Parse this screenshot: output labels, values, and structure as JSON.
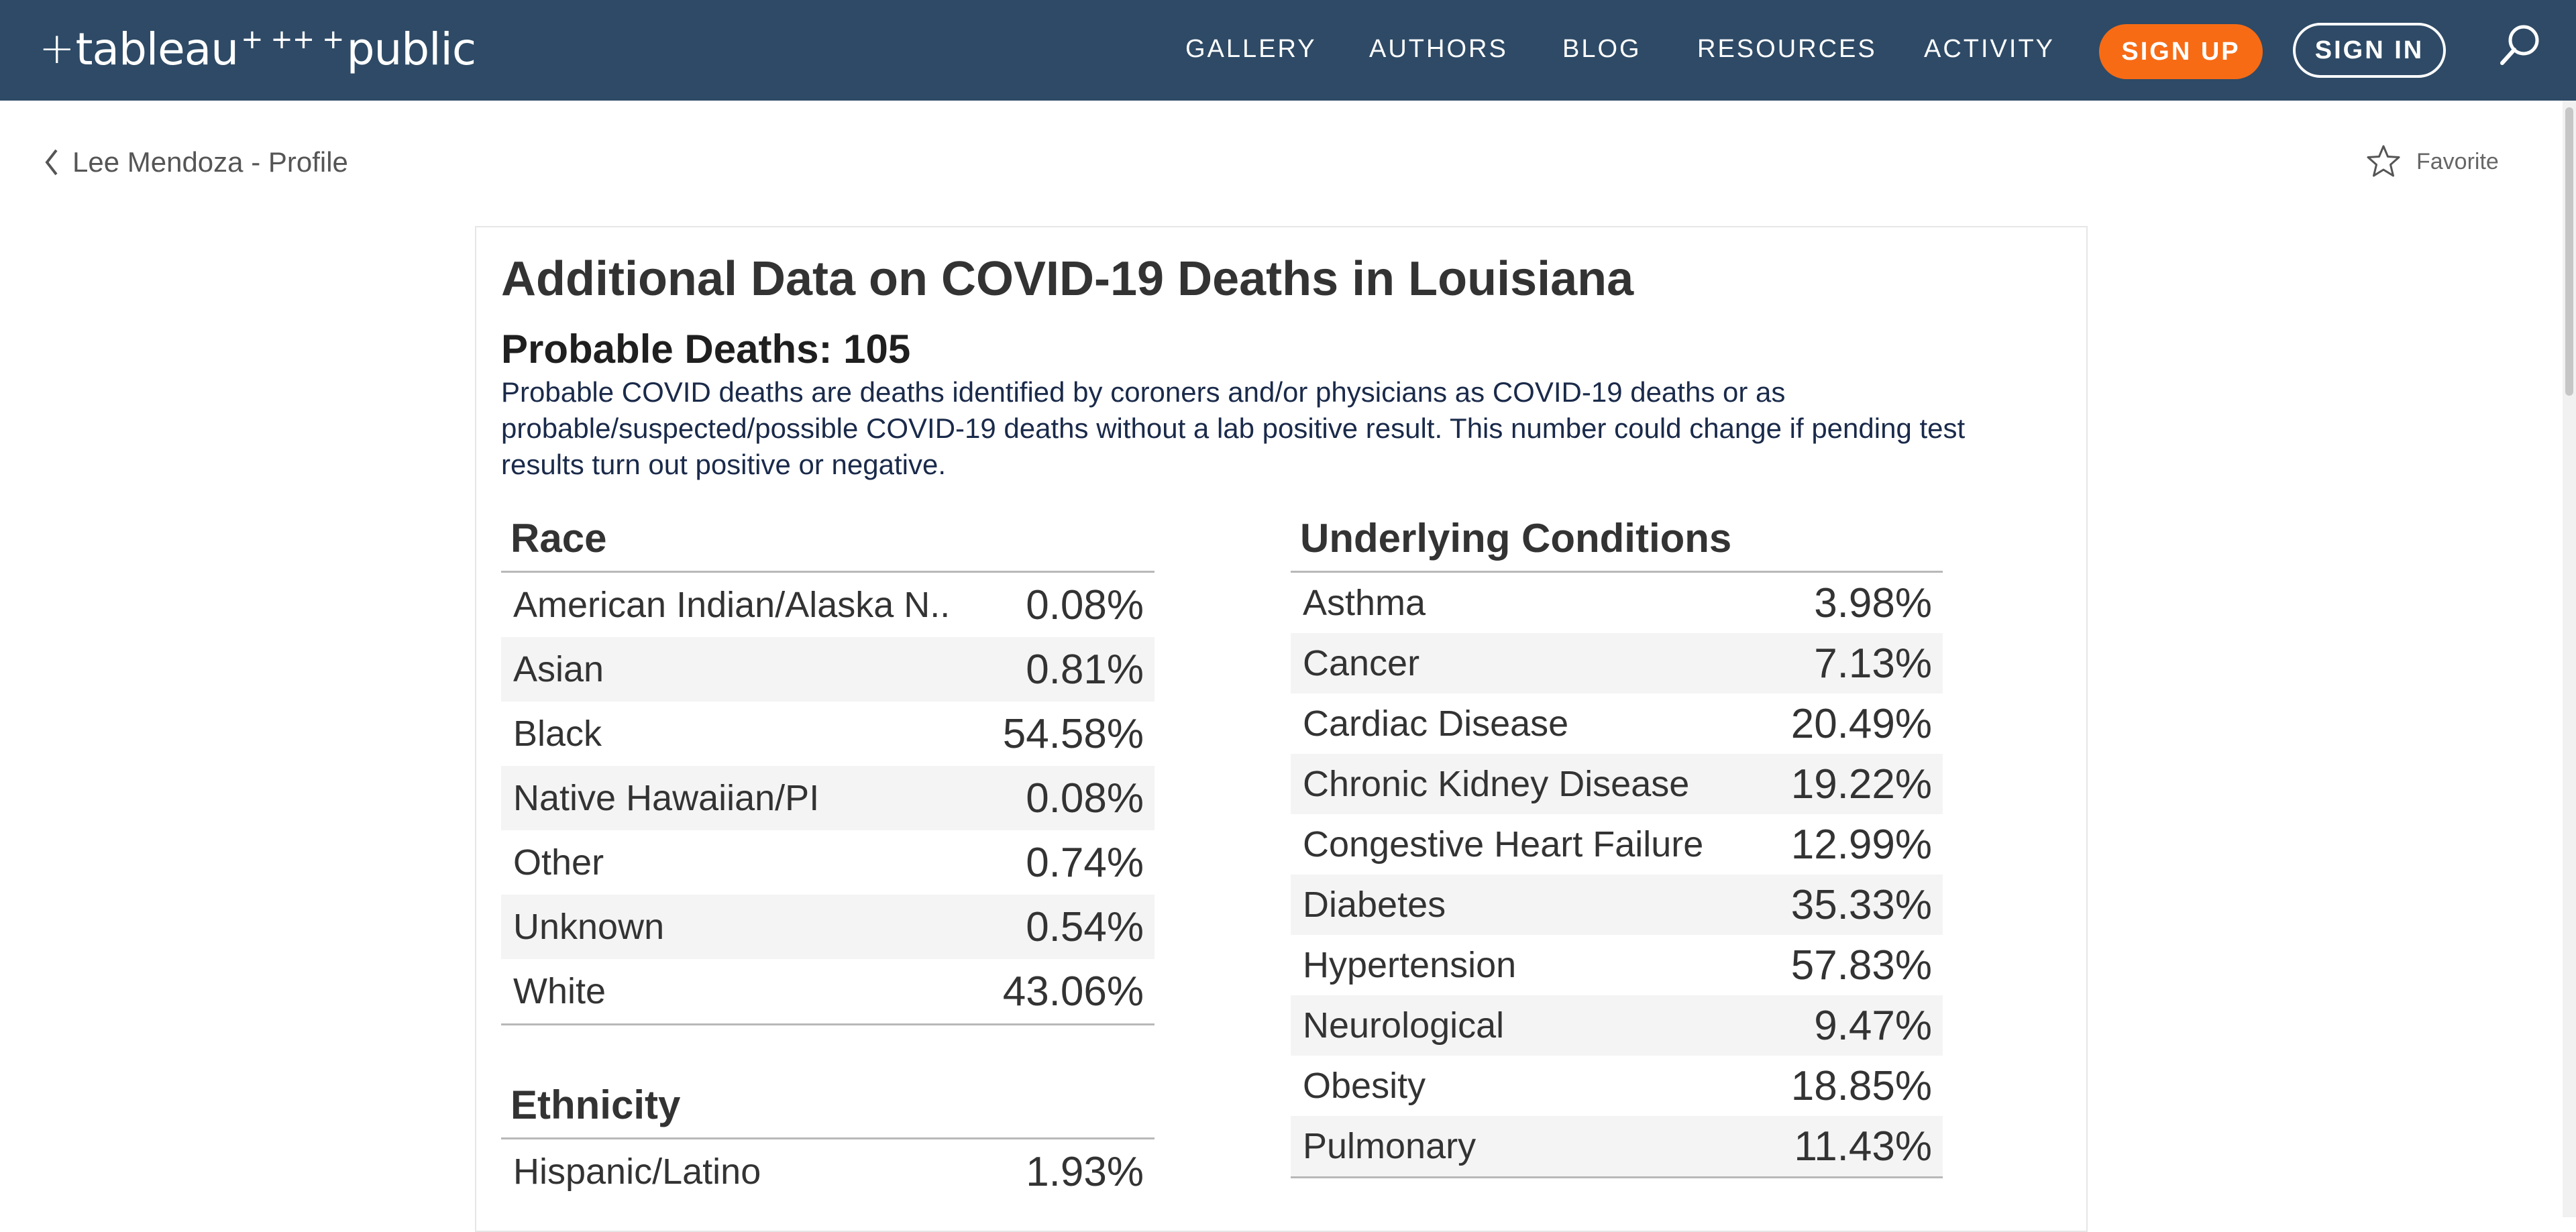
{
  "header": {
    "logo": {
      "prefix": "+",
      "brand": "tableau",
      "mark": "+ ++ +",
      "suffix": "public"
    },
    "nav": [
      "GALLERY",
      "AUTHORS",
      "BLOG",
      "RESOURCES",
      "ACTIVITY"
    ],
    "signup_label": "SIGN UP",
    "signin_label": "SIGN IN"
  },
  "subheader": {
    "back_label": "Lee Mendoza - Profile",
    "favorite_label": "Favorite"
  },
  "viz": {
    "title": "Additional Data on COVID-19 Deaths in Louisiana",
    "subtitle": "Probable Deaths: 105",
    "description": "Probable COVID deaths are deaths identified by coroners and/or physicians as COVID-19 deaths or as probable/suspected/possible COVID-19 deaths without a lab positive result. This number could change if pending test results turn out positive or negative.",
    "race": {
      "title": "Race",
      "rows": [
        {
          "label": "American Indian/Alaska N..",
          "value": "0.08%"
        },
        {
          "label": "Asian",
          "value": "0.81%"
        },
        {
          "label": "Black",
          "value": "54.58%"
        },
        {
          "label": "Native Hawaiian/PI",
          "value": "0.08%"
        },
        {
          "label": "Other",
          "value": "0.74%"
        },
        {
          "label": "Unknown",
          "value": "0.54%"
        },
        {
          "label": "White",
          "value": "43.06%"
        }
      ]
    },
    "ethnicity": {
      "title": "Ethnicity",
      "rows": [
        {
          "label": "Hispanic/Latino",
          "value": "1.93%"
        }
      ]
    },
    "conditions": {
      "title": "Underlying Conditions",
      "rows": [
        {
          "label": "Asthma",
          "value": "3.98%"
        },
        {
          "label": "Cancer",
          "value": "7.13%"
        },
        {
          "label": "Cardiac Disease",
          "value": "20.49%"
        },
        {
          "label": "Chronic Kidney Disease",
          "value": "19.22%"
        },
        {
          "label": "Congestive Heart Failure",
          "value": "12.99%"
        },
        {
          "label": "Diabetes",
          "value": "35.33%"
        },
        {
          "label": "Hypertension",
          "value": "57.83%"
        },
        {
          "label": "Neurological",
          "value": "9.47%"
        },
        {
          "label": "Obesity",
          "value": "18.85%"
        },
        {
          "label": "Pulmonary",
          "value": "11.43%"
        }
      ]
    }
  },
  "colors": {
    "header_bg": "#2e4a66",
    "signup_bg": "#f76b15",
    "row_alt_bg": "#f4f4f4"
  },
  "icons": [
    "tableau-public-logo",
    "search-icon",
    "chevron-left-icon",
    "star-icon"
  ]
}
